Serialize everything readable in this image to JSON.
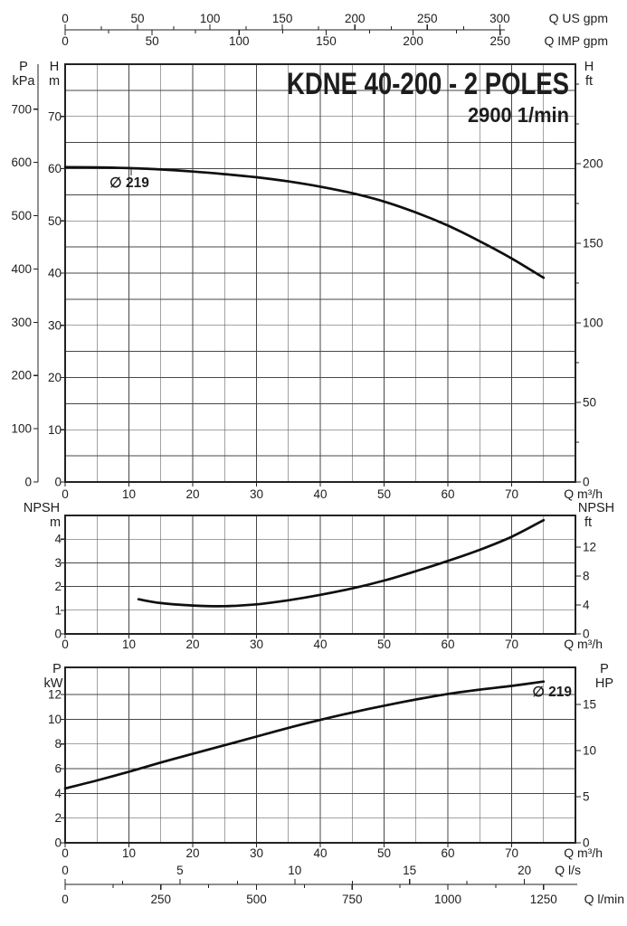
{
  "page": {
    "background": "#ffffff",
    "ink": "#1d1d1d"
  },
  "title": {
    "model": "KDNE 40-200 - 2 POLES",
    "speed": "2900 1/min"
  },
  "impeller": {
    "symbol": "∅",
    "value": "219",
    "label": "∅ 219"
  },
  "header_rulers": [
    {
      "id": "q-us-gpm",
      "unit": "Q US gpm",
      "labels": [
        0,
        50,
        100,
        150,
        200,
        250,
        300
      ],
      "minor_step": 25,
      "to_m3h": 0.22712,
      "side": "above"
    },
    {
      "id": "q-imp-gpm",
      "unit": "Q IMP gpm",
      "labels": [
        0,
        50,
        100,
        150,
        200,
        250
      ],
      "minor_step": 25,
      "to_m3h": 0.27276,
      "side": "below"
    }
  ],
  "footer_rulers": [
    {
      "id": "q-l-s",
      "unit": "Q l/s",
      "labels": [
        0,
        5,
        10,
        15,
        20
      ],
      "minor_step": 2.5,
      "to_m3h": 3.6,
      "side": "above"
    },
    {
      "id": "q-l-min",
      "unit": "Q l/min",
      "labels": [
        0,
        250,
        500,
        750,
        1000,
        1250
      ],
      "minor_step": 125,
      "to_m3h": 0.06,
      "side": "below"
    }
  ],
  "chart_data": [
    {
      "id": "head",
      "type": "line",
      "title": "KDNE 40-200 - 2 POLES",
      "subtitle": "2900 1/min",
      "x_axis": {
        "label": "Q m³/h",
        "min": 0,
        "max": 80,
        "grid_step": 5,
        "tick_labels": [
          0,
          10,
          20,
          30,
          40,
          50,
          60,
          70
        ]
      },
      "y_axis": {
        "label_lines": [
          "H",
          "m"
        ],
        "min": 0,
        "max": 80,
        "grid_step": 5,
        "tick_labels": [
          0,
          10,
          20,
          30,
          40,
          50,
          60,
          70
        ]
      },
      "y_axis2_left": {
        "label_lines": [
          "P",
          "kPa"
        ],
        "tick_labels": [
          0,
          100,
          200,
          300,
          400,
          500,
          600,
          700
        ],
        "factor_to_primary": 0.10197
      },
      "y_axis_right": {
        "label_lines": [
          "H",
          "ft"
        ],
        "tick_labels": [
          0,
          50,
          100,
          150,
          200
        ],
        "minor_step": 25,
        "factor_to_primary": 0.3048
      },
      "annotation": "∅ 219",
      "series": [
        {
          "name": "∅ 219",
          "points": [
            [
              0,
              60.3
            ],
            [
              5,
              60.25
            ],
            [
              10,
              60.1
            ],
            [
              15,
              59.85
            ],
            [
              20,
              59.45
            ],
            [
              25,
              58.95
            ],
            [
              30,
              58.35
            ],
            [
              35,
              57.55
            ],
            [
              40,
              56.55
            ],
            [
              45,
              55.3
            ],
            [
              50,
              53.7
            ],
            [
              55,
              51.6
            ],
            [
              60,
              49.1
            ],
            [
              65,
              46.1
            ],
            [
              70,
              42.8
            ],
            [
              75,
              39.1
            ]
          ]
        }
      ]
    },
    {
      "id": "npsh",
      "type": "line",
      "x_axis": {
        "label": "Q m³/h",
        "min": 0,
        "max": 80,
        "grid_step": 5,
        "tick_labels": [
          0,
          10,
          20,
          30,
          40,
          50,
          60,
          70
        ]
      },
      "y_axis": {
        "label_lines": [
          "NPSH",
          "m"
        ],
        "min": 0,
        "max": 5,
        "grid_step": 1,
        "tick_labels": [
          0,
          1,
          2,
          3,
          4
        ]
      },
      "y_axis_right": {
        "label_lines": [
          "NPSH",
          "ft"
        ],
        "tick_labels": [
          0,
          4,
          8,
          12
        ],
        "minor_step": null,
        "factor_to_primary": 0.3048
      },
      "series": [
        {
          "name": "NPSH",
          "points": [
            [
              11.5,
              1.46
            ],
            [
              15,
              1.3
            ],
            [
              20,
              1.2
            ],
            [
              25,
              1.17
            ],
            [
              30,
              1.25
            ],
            [
              35,
              1.42
            ],
            [
              40,
              1.65
            ],
            [
              45,
              1.92
            ],
            [
              50,
              2.25
            ],
            [
              55,
              2.65
            ],
            [
              60,
              3.08
            ],
            [
              65,
              3.55
            ],
            [
              70,
              4.1
            ],
            [
              75,
              4.8
            ]
          ]
        }
      ]
    },
    {
      "id": "power",
      "type": "line",
      "x_axis": {
        "label": "Q m³/h",
        "min": 0,
        "max": 80,
        "grid_step": 5,
        "tick_labels": [
          0,
          10,
          20,
          30,
          40,
          50,
          60,
          70
        ]
      },
      "y_axis": {
        "label_lines": [
          "P",
          "kW"
        ],
        "min": 0,
        "max": 14.2,
        "grid_step": 2,
        "tick_labels": [
          0,
          2,
          4,
          6,
          8,
          10,
          12
        ]
      },
      "y_axis_right": {
        "label_lines": [
          "P",
          "HP"
        ],
        "tick_labels": [
          0,
          5,
          10,
          15
        ],
        "minor_step": null,
        "factor_to_primary": 0.7457
      },
      "annotation": "∅ 219",
      "series": [
        {
          "name": "∅ 219",
          "points": [
            [
              0,
              4.4
            ],
            [
              5,
              5.05
            ],
            [
              10,
              5.75
            ],
            [
              15,
              6.5
            ],
            [
              20,
              7.2
            ],
            [
              25,
              7.9
            ],
            [
              30,
              8.6
            ],
            [
              35,
              9.3
            ],
            [
              40,
              9.95
            ],
            [
              45,
              10.55
            ],
            [
              50,
              11.1
            ],
            [
              55,
              11.6
            ],
            [
              60,
              12.05
            ],
            [
              65,
              12.4
            ],
            [
              70,
              12.7
            ],
            [
              75,
              13.05
            ]
          ]
        }
      ]
    }
  ]
}
